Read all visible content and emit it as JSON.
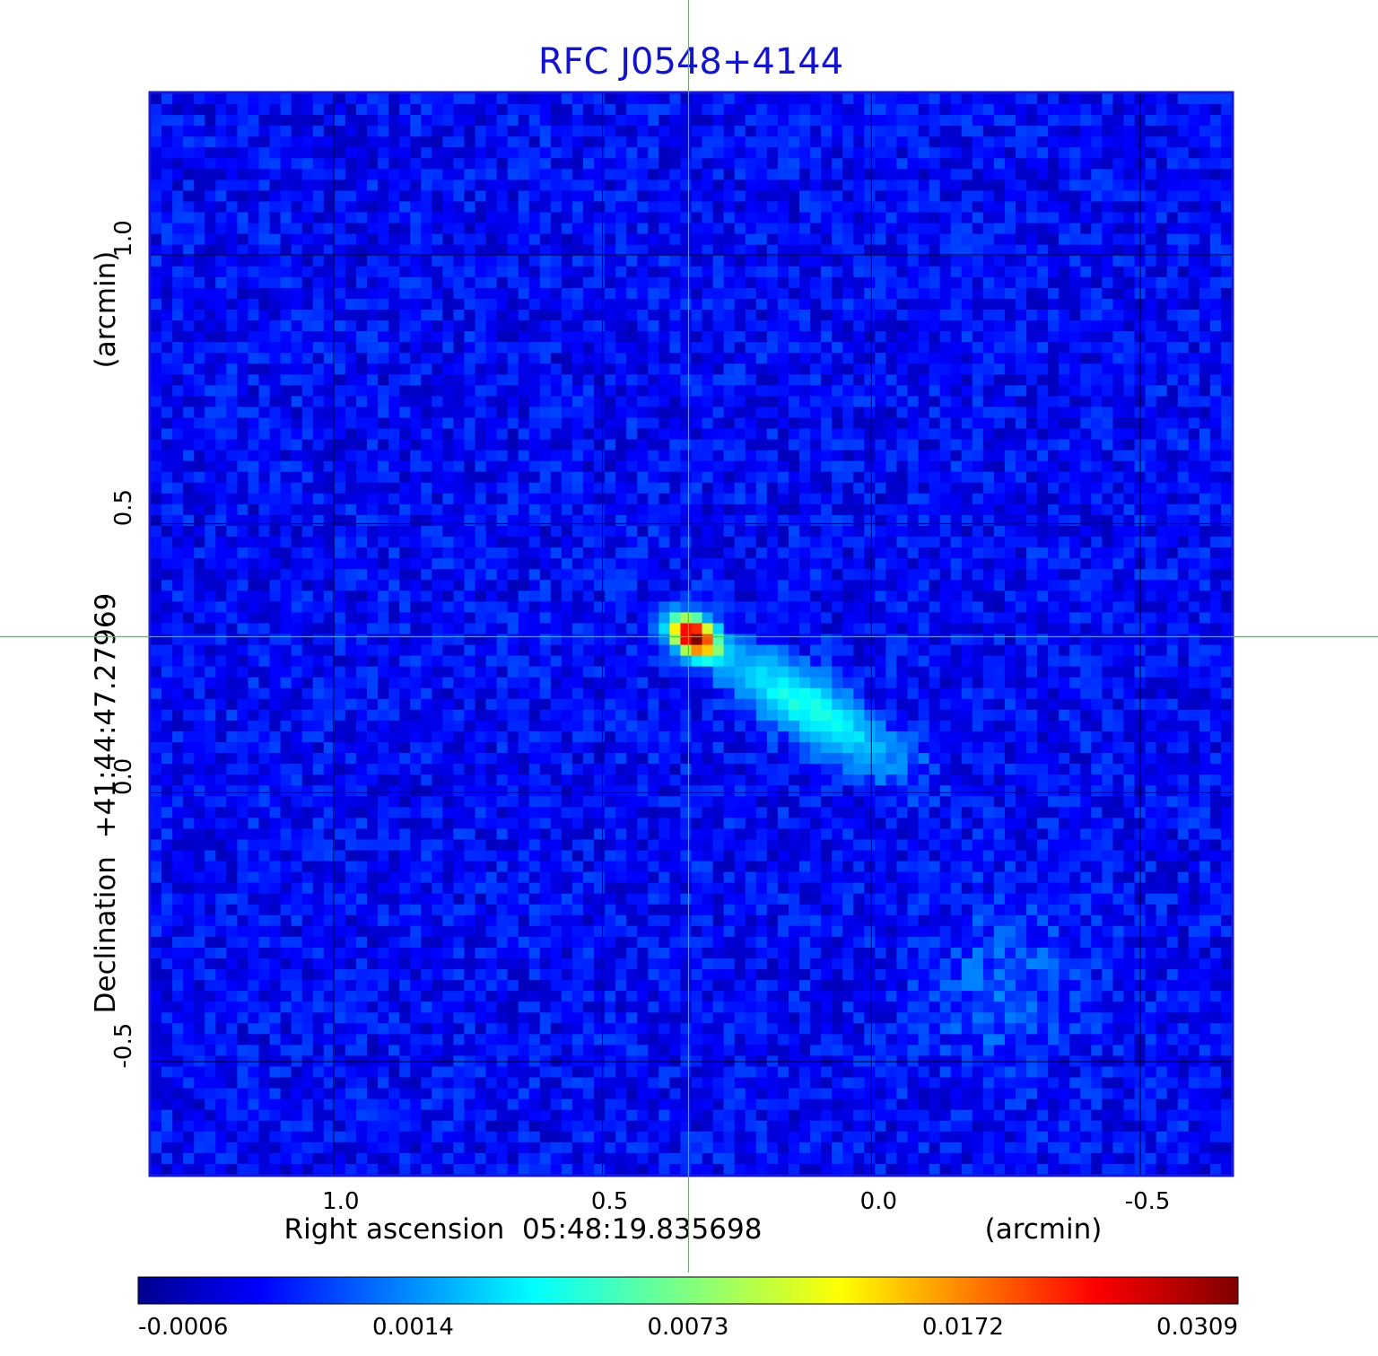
{
  "chart_data": {
    "type": "heatmap",
    "title": "RFC J0548+4144",
    "xlabel": "Right ascension  05:48:19.835698",
    "xunit": "(arcmin)",
    "ylabel": "Declination  +41:44:47.27969",
    "yunit": "(arcmin)",
    "xlim": [
      1.34,
      -0.67
    ],
    "ylim": [
      -0.71,
      1.3
    ],
    "x_ticks": [
      {
        "value": 1.0,
        "label": "1.0"
      },
      {
        "value": 0.5,
        "label": "0.5"
      },
      {
        "value": 0.0,
        "label": "0.0"
      },
      {
        "value": -0.5,
        "label": "-0.5"
      }
    ],
    "y_ticks": [
      {
        "value": 1.0,
        "label": "1.0"
      },
      {
        "value": 0.5,
        "label": "0.5"
      },
      {
        "value": 0.0,
        "label": "0.0"
      },
      {
        "value": -0.5,
        "label": "-0.5"
      }
    ],
    "grid": true,
    "crosshair": {
      "x": 0.34,
      "y": 0.29,
      "color": "#22dd22"
    },
    "colorbar": {
      "colormap": "jet",
      "ticks": [
        "-0.0006",
        "0.0014",
        "0.0073",
        "0.0172",
        "0.0309"
      ]
    },
    "sources": [
      {
        "component": "core",
        "x": 0.33,
        "y": 0.29,
        "peak": 0.0309
      },
      {
        "component": "jet",
        "x": 0.12,
        "y": 0.16,
        "peak": 0.0045
      }
    ],
    "background_level": 0.0004
  }
}
